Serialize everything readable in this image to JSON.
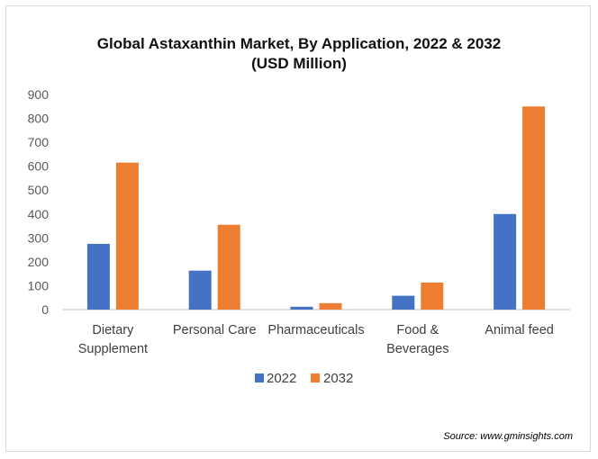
{
  "title_line1": "Global Astaxanthin Market, By Application, 2022 & 2032",
  "title_line2": "(USD Million)",
  "source": "Source: www.gminsights.com",
  "colors": {
    "s2022": "#4472c4",
    "s2032": "#ed7d31",
    "axis": "#bfbfbf"
  },
  "chart_data": {
    "type": "bar",
    "title": "Global Astaxanthin Market, By Application, 2022 & 2032 (USD Million)",
    "categories": [
      [
        "Dietary",
        "Supplement"
      ],
      [
        "Personal Care"
      ],
      [
        "Pharmaceuticals"
      ],
      [
        "Food &",
        "Beverages"
      ],
      [
        "Animal feed"
      ]
    ],
    "series": [
      {
        "name": "2022",
        "values": [
          275,
          163,
          12,
          58,
          400
        ]
      },
      {
        "name": "2032",
        "values": [
          615,
          355,
          27,
          113,
          850
        ]
      }
    ],
    "ylim": [
      0,
      900
    ],
    "yticks": [
      0,
      100,
      200,
      300,
      400,
      500,
      600,
      700,
      800,
      900
    ],
    "legend": "bottom",
    "grid": false
  }
}
